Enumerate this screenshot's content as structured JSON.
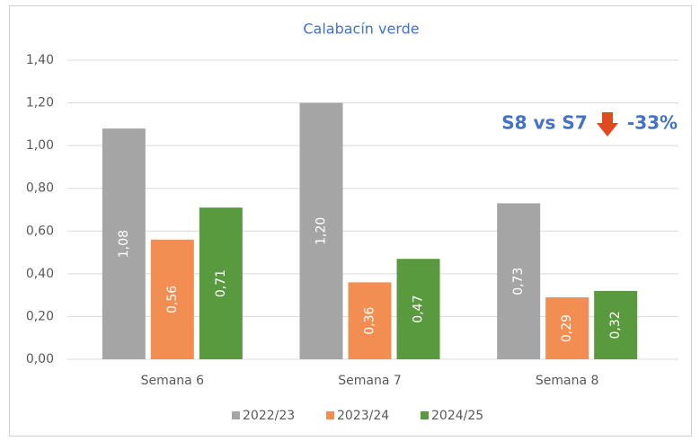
{
  "chart_data": {
    "type": "bar",
    "title": "Calabacín verde",
    "categories": [
      "Semana 6",
      "Semana 7",
      "Semana 8"
    ],
    "series": [
      {
        "name": "2022/23",
        "color": "#a5a5a5",
        "values": [
          1.08,
          1.2,
          0.73
        ],
        "value_labels": [
          "1,08",
          "1,20",
          "0,73"
        ]
      },
      {
        "name": "2023/24",
        "color": "#f28e52",
        "values": [
          0.56,
          0.36,
          0.29
        ],
        "value_labels": [
          "0,56",
          "0,36",
          "0,29"
        ]
      },
      {
        "name": "2024/25",
        "color": "#5a9a3f",
        "values": [
          0.71,
          0.47,
          0.32
        ],
        "value_labels": [
          "0,71",
          "0,47",
          "0,32"
        ]
      }
    ],
    "ylim": [
      0,
      1.4
    ],
    "yticks": [
      {
        "value": 0,
        "label": "0,00"
      },
      {
        "value": 0.2,
        "label": "0,20"
      },
      {
        "value": 0.4,
        "label": "0,40"
      },
      {
        "value": 0.6,
        "label": "0,60"
      },
      {
        "value": 0.8,
        "label": "0,80"
      },
      {
        "value": 1.0,
        "label": "1,00"
      },
      {
        "value": 1.2,
        "label": "1,20"
      },
      {
        "value": 1.4,
        "label": "1,40"
      }
    ],
    "grid": true,
    "legend": "bottom",
    "annotations": [
      "S8 vs S7",
      "-33%"
    ]
  }
}
